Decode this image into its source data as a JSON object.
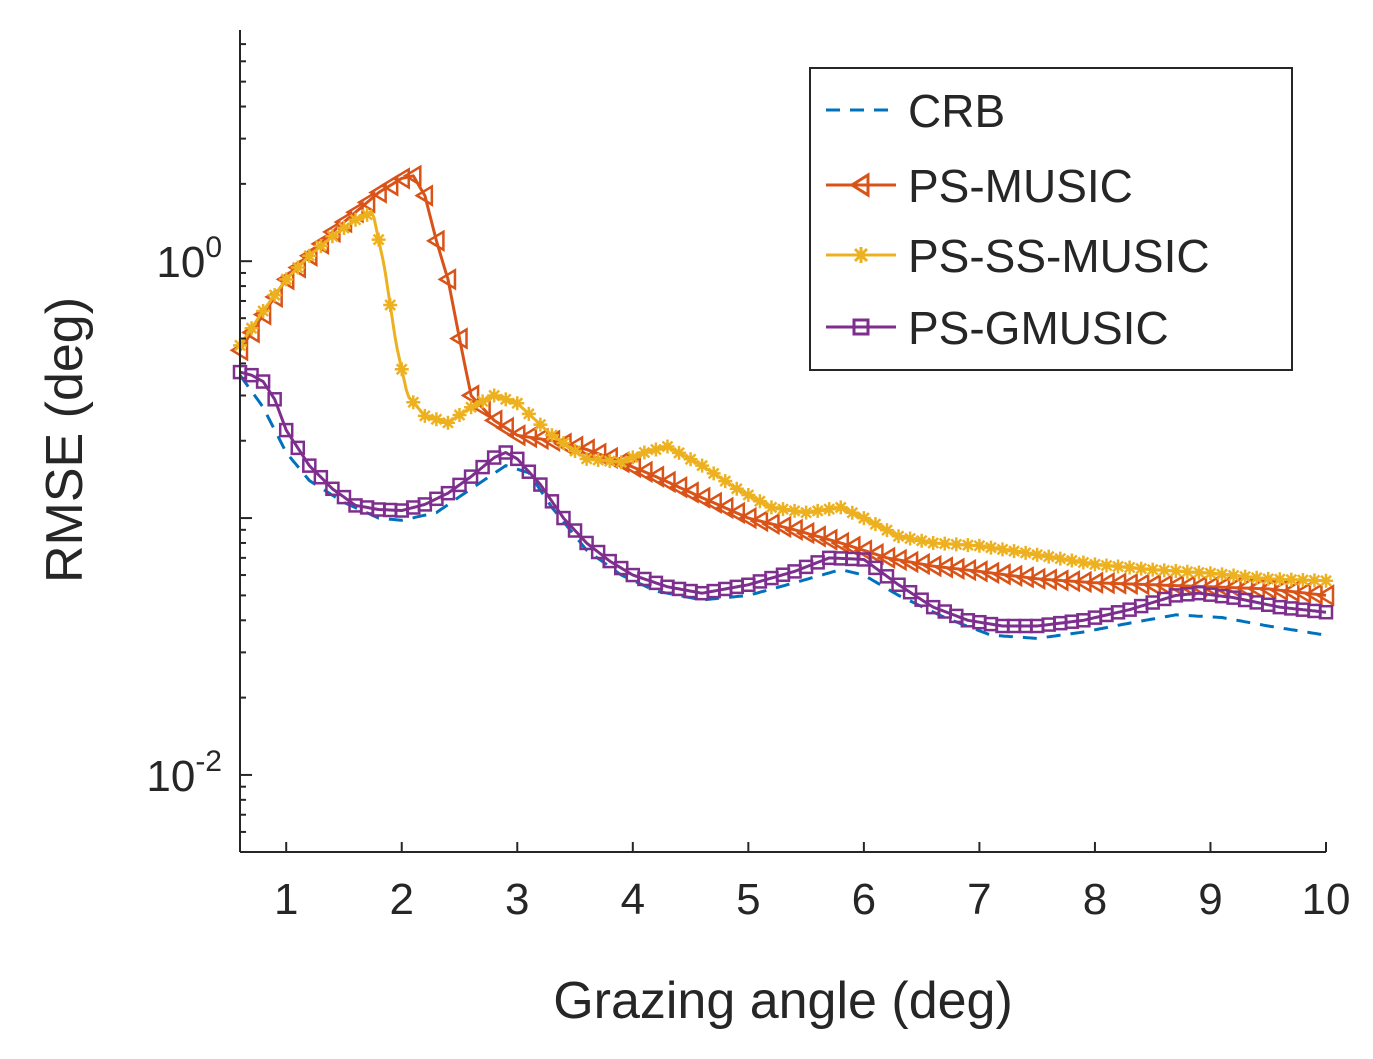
{
  "chart_data": {
    "type": "line",
    "yscale": "log",
    "xlabel": "Grazing angle (deg)",
    "ylabel": "RMSE (deg)",
    "xlim": [
      0.6,
      10
    ],
    "ylim_log10": [
      -2.3,
      0.9
    ],
    "x_ticks": [
      1,
      2,
      3,
      4,
      5,
      6,
      7,
      8,
      9,
      10
    ],
    "x_tick_labels": [
      "1",
      "2",
      "3",
      "4",
      "5",
      "6",
      "7",
      "8",
      "9",
      "10"
    ],
    "y_ticks": [
      {
        "value": 0.01,
        "base": "10",
        "exp": "-2"
      },
      {
        "value": 1,
        "base": "10",
        "exp": "0"
      }
    ],
    "legend_position": "top-right",
    "series": [
      {
        "name": "CRB",
        "color": "#0072BD",
        "style": "dashed",
        "marker": "none",
        "points": [
          [
            0.6,
            0.36
          ],
          [
            0.8,
            0.27
          ],
          [
            1.0,
            0.18
          ],
          [
            1.2,
            0.14
          ],
          [
            1.5,
            0.115
          ],
          [
            1.8,
            0.1
          ],
          [
            2.0,
            0.098
          ],
          [
            2.3,
            0.105
          ],
          [
            2.6,
            0.13
          ],
          [
            2.9,
            0.16
          ],
          [
            3.1,
            0.15
          ],
          [
            3.3,
            0.11
          ],
          [
            3.6,
            0.075
          ],
          [
            3.9,
            0.06
          ],
          [
            4.2,
            0.052
          ],
          [
            4.6,
            0.048
          ],
          [
            5.0,
            0.05
          ],
          [
            5.4,
            0.056
          ],
          [
            5.8,
            0.063
          ],
          [
            6.0,
            0.06
          ],
          [
            6.3,
            0.05
          ],
          [
            6.7,
            0.041
          ],
          [
            7.1,
            0.035
          ],
          [
            7.5,
            0.034
          ],
          [
            7.9,
            0.036
          ],
          [
            8.3,
            0.039
          ],
          [
            8.7,
            0.042
          ],
          [
            9.1,
            0.041
          ],
          [
            9.5,
            0.038
          ],
          [
            10.0,
            0.035
          ]
        ]
      },
      {
        "name": "PS-MUSIC",
        "color": "#D95319",
        "style": "solid",
        "marker": "triangle-left",
        "points": [
          [
            0.6,
            0.45
          ],
          [
            0.8,
            0.62
          ],
          [
            1.0,
            0.85
          ],
          [
            1.2,
            1.05
          ],
          [
            1.4,
            1.3
          ],
          [
            1.6,
            1.55
          ],
          [
            1.8,
            1.85
          ],
          [
            2.0,
            2.1
          ],
          [
            2.1,
            2.15
          ],
          [
            2.2,
            1.8
          ],
          [
            2.3,
            1.2
          ],
          [
            2.4,
            0.85
          ],
          [
            2.5,
            0.5
          ],
          [
            2.6,
            0.3
          ],
          [
            2.8,
            0.24
          ],
          [
            3.0,
            0.21
          ],
          [
            3.3,
            0.2
          ],
          [
            3.6,
            0.185
          ],
          [
            3.9,
            0.165
          ],
          [
            4.2,
            0.145
          ],
          [
            4.6,
            0.12
          ],
          [
            5.0,
            0.1
          ],
          [
            5.4,
            0.09
          ],
          [
            5.8,
            0.08
          ],
          [
            6.2,
            0.07
          ],
          [
            6.6,
            0.065
          ],
          [
            7.0,
            0.062
          ],
          [
            7.5,
            0.058
          ],
          [
            8.0,
            0.056
          ],
          [
            8.5,
            0.055
          ],
          [
            9.0,
            0.054
          ],
          [
            9.5,
            0.053
          ],
          [
            10.0,
            0.05
          ]
        ]
      },
      {
        "name": "PS-SS-MUSIC",
        "color": "#EDB120",
        "style": "solid",
        "marker": "asterisk",
        "points": [
          [
            0.6,
            0.47
          ],
          [
            0.8,
            0.64
          ],
          [
            1.0,
            0.85
          ],
          [
            1.2,
            1.05
          ],
          [
            1.4,
            1.25
          ],
          [
            1.6,
            1.45
          ],
          [
            1.75,
            1.55
          ],
          [
            1.85,
            0.95
          ],
          [
            1.95,
            0.48
          ],
          [
            2.05,
            0.3
          ],
          [
            2.2,
            0.25
          ],
          [
            2.4,
            0.235
          ],
          [
            2.6,
            0.27
          ],
          [
            2.8,
            0.3
          ],
          [
            3.0,
            0.28
          ],
          [
            3.3,
            0.21
          ],
          [
            3.6,
            0.17
          ],
          [
            3.9,
            0.165
          ],
          [
            4.1,
            0.18
          ],
          [
            4.3,
            0.19
          ],
          [
            4.6,
            0.16
          ],
          [
            4.9,
            0.13
          ],
          [
            5.2,
            0.11
          ],
          [
            5.5,
            0.105
          ],
          [
            5.8,
            0.11
          ],
          [
            6.0,
            0.1
          ],
          [
            6.3,
            0.085
          ],
          [
            6.6,
            0.08
          ],
          [
            7.0,
            0.078
          ],
          [
            7.5,
            0.072
          ],
          [
            8.0,
            0.066
          ],
          [
            8.5,
            0.063
          ],
          [
            9.0,
            0.061
          ],
          [
            9.5,
            0.058
          ],
          [
            10.0,
            0.057
          ]
        ]
      },
      {
        "name": "PS-GMUSIC",
        "color": "#7E2F8E",
        "style": "solid",
        "marker": "square",
        "points": [
          [
            0.6,
            0.37
          ],
          [
            0.7,
            0.36
          ],
          [
            0.8,
            0.34
          ],
          [
            0.9,
            0.29
          ],
          [
            1.0,
            0.22
          ],
          [
            1.2,
            0.16
          ],
          [
            1.4,
            0.13
          ],
          [
            1.6,
            0.112
          ],
          [
            1.8,
            0.108
          ],
          [
            2.0,
            0.107
          ],
          [
            2.2,
            0.113
          ],
          [
            2.4,
            0.125
          ],
          [
            2.6,
            0.145
          ],
          [
            2.8,
            0.172
          ],
          [
            2.9,
            0.18
          ],
          [
            3.0,
            0.17
          ],
          [
            3.2,
            0.135
          ],
          [
            3.4,
            0.1
          ],
          [
            3.6,
            0.08
          ],
          [
            3.8,
            0.068
          ],
          [
            4.0,
            0.06
          ],
          [
            4.3,
            0.054
          ],
          [
            4.6,
            0.051
          ],
          [
            5.0,
            0.055
          ],
          [
            5.4,
            0.062
          ],
          [
            5.7,
            0.07
          ],
          [
            6.0,
            0.069
          ],
          [
            6.3,
            0.055
          ],
          [
            6.6,
            0.045
          ],
          [
            6.9,
            0.04
          ],
          [
            7.2,
            0.038
          ],
          [
            7.5,
            0.038
          ],
          [
            7.9,
            0.04
          ],
          [
            8.3,
            0.044
          ],
          [
            8.7,
            0.05
          ],
          [
            8.9,
            0.051
          ],
          [
            9.2,
            0.049
          ],
          [
            9.6,
            0.045
          ],
          [
            10.0,
            0.043
          ]
        ]
      }
    ]
  }
}
